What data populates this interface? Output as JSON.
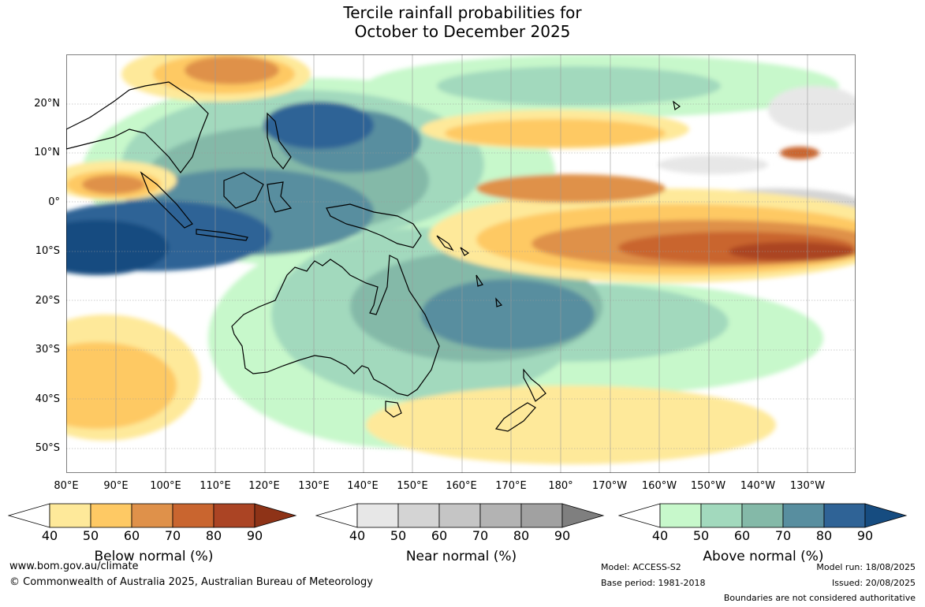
{
  "title_line1": "Tercile rainfall probabilities for",
  "title_line2": "October to December 2025",
  "lat_labels": [
    "20°N",
    "10°N",
    "0°",
    "10°S",
    "20°S",
    "30°S",
    "40°S",
    "50°S"
  ],
  "lon_labels": [
    "80°E",
    "90°E",
    "100°E",
    "110°E",
    "120°E",
    "130°E",
    "140°E",
    "150°E",
    "160°E",
    "170°E",
    "180°",
    "170°W",
    "160°W",
    "150°W",
    "140°W",
    "130°W"
  ],
  "legends": {
    "below": {
      "label": "Below normal (%)",
      "ticks": [
        "40",
        "50",
        "60",
        "70",
        "80",
        "90"
      ],
      "colors": [
        "#ffffff",
        "#fee99a",
        "#fec964",
        "#df914a",
        "#c9652f",
        "#ab4424",
        "#8e3317"
      ]
    },
    "near": {
      "label": "Near normal (%)",
      "ticks": [
        "40",
        "50",
        "60",
        "70",
        "80",
        "90"
      ],
      "colors": [
        "#ffffff",
        "#e7e7e7",
        "#d4d4d4",
        "#c5c5c5",
        "#b3b3b3",
        "#a1a1a1",
        "#7f7f7f"
      ]
    },
    "above": {
      "label": "Above normal (%)",
      "ticks": [
        "40",
        "50",
        "60",
        "70",
        "80",
        "90"
      ],
      "colors": [
        "#ffffff",
        "#c7f8cb",
        "#a2d9bd",
        "#84b9a8",
        "#588e9f",
        "#2f6396",
        "#164c80"
      ]
    }
  },
  "footer": {
    "website": "www.bom.gov.au/climate",
    "copyright": "© Commonwealth of Australia 2025, Australian Bureau of Meteorology",
    "model": "Model: ACCESS-S2",
    "base_period": "Base period: 1981-2018",
    "model_run": "Model run: 18/08/2025",
    "issued": "Issued: 20/08/2025",
    "boundaries": "Boundaries are not considered authoritative"
  }
}
